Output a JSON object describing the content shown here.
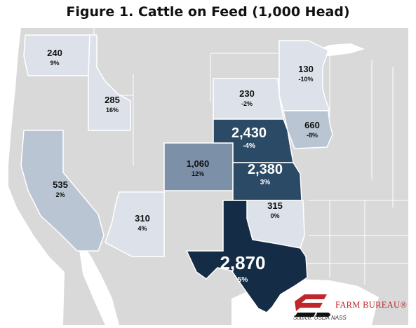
{
  "title": "Figure 1. Cattle on Feed (1,000 Head)",
  "colors": {
    "water": "#ffffff",
    "land": "#d9d9d9",
    "border": "#ffffff",
    "low": "#dde2ea",
    "mid": "#b9c5d3",
    "midhigh": "#7c91a8",
    "high": "#2b4a66",
    "top": "#142c45"
  },
  "states": [
    {
      "state": "Washington",
      "value": "240",
      "change": "9%",
      "tier": "low"
    },
    {
      "state": "Idaho",
      "value": "285",
      "change": "16%",
      "tier": "low"
    },
    {
      "state": "California",
      "value": "535",
      "change": "2%",
      "tier": "mid"
    },
    {
      "state": "Arizona",
      "value": "310",
      "change": "4%",
      "tier": "low"
    },
    {
      "state": "Colorado",
      "value": "1,060",
      "change": "12%",
      "tier": "midhigh"
    },
    {
      "state": "South Dakota",
      "value": "230",
      "change": "-2%",
      "tier": "low"
    },
    {
      "state": "Nebraska",
      "value": "2,430",
      "change": "-4%",
      "tier": "high"
    },
    {
      "state": "Kansas",
      "value": "2,380",
      "change": "3%",
      "tier": "high"
    },
    {
      "state": "Minnesota",
      "value": "130",
      "change": "-10%",
      "tier": "low"
    },
    {
      "state": "Iowa",
      "value": "660",
      "change": "-8%",
      "tier": "mid"
    },
    {
      "state": "Oklahoma",
      "value": "315",
      "change": "0%",
      "tier": "low"
    },
    {
      "state": "Texas",
      "value": "2,870",
      "change": "5%",
      "tier": "top"
    }
  ],
  "logo": {
    "icon": "farm-bureau-fb-logo-icon",
    "text": "FARM BUREAU®"
  },
  "source": "Source: USDA NASS"
}
